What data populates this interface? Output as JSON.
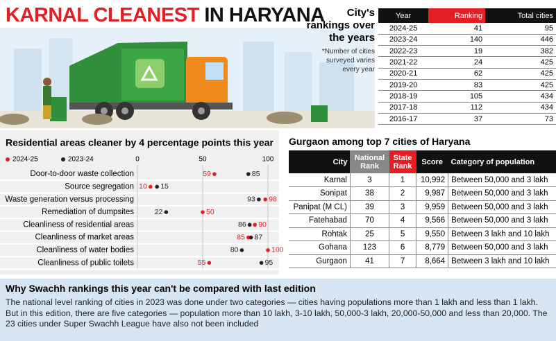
{
  "header": {
    "title_red": "KARNAL CLEANEST",
    "title_black": "IN HARYANA"
  },
  "rankings": {
    "title": "City's rankings over the years",
    "note": "*Number of cities surveyed varies every year",
    "columns": [
      "Year",
      "Ranking",
      "Total cities"
    ],
    "rows": [
      [
        "2024-25",
        41,
        95
      ],
      [
        "2023-24",
        140,
        446
      ],
      [
        "2022-23",
        19,
        382
      ],
      [
        "2021-22",
        24,
        425
      ],
      [
        "2020-21",
        62,
        425
      ],
      [
        "2019-20",
        83,
        425
      ],
      [
        "2018-19",
        105,
        434
      ],
      [
        "2017-18",
        112,
        434
      ],
      [
        "2016-17",
        37,
        73
      ]
    ]
  },
  "chart_data": {
    "type": "dot",
    "title": "Residential areas cleaner by 4 percentage points this year",
    "categories": [
      "Door-to-door waste collection",
      "Source segregation",
      "Waste generation versus processing",
      "Remediation of dumpsites",
      "Cleanliness of residential areas",
      "Cleanliness of market areas",
      "Cleanliness of water bodies",
      "Cleanliness of public toilets"
    ],
    "series": [
      {
        "name": "2024-25",
        "color": "#e31e24",
        "values": [
          59,
          10,
          98,
          50,
          90,
          85,
          100,
          55
        ]
      },
      {
        "name": "2023-24",
        "color": "#222222",
        "values": [
          85,
          15,
          93,
          22,
          86,
          87,
          80,
          95
        ]
      }
    ],
    "xlim": [
      0,
      100
    ],
    "xticks": [
      0,
      50,
      100
    ]
  },
  "gurgaon": {
    "title": "Gurgaon among top 7 cities of Haryana",
    "columns": [
      "City",
      "National Rank",
      "State Rank",
      "Score",
      "Category of population"
    ],
    "rows": [
      [
        "Karnal",
        3,
        1,
        "10,992",
        "Between 50,000 and 3 lakh"
      ],
      [
        "Sonipat",
        38,
        2,
        "9,987",
        "Between 50,000 and 3 lakh"
      ],
      [
        "Panipat (M CL)",
        39,
        3,
        "9,959",
        "Between 50,000 and 3 lakh"
      ],
      [
        "Fatehabad",
        70,
        4,
        "9,566",
        "Between 50,000 and 3 lakh"
      ],
      [
        "Rohtak",
        25,
        5,
        "9,550",
        "Between 3 lakh and 10 lakh"
      ],
      [
        "Gohana",
        123,
        6,
        "8,779",
        "Between 50,000 and 3 lakh"
      ],
      [
        "Gurgaon",
        41,
        7,
        "8,664",
        "Between 3 lakh and 10 lakh"
      ]
    ]
  },
  "note": {
    "title": "Why Swachh rankings this year can't be compared with last edition",
    "body": "The national level ranking of cities in 2023 was done under two categories — cities having populations more than 1 lakh and less than 1 lakh. But in this edition, there are five categories — population more than 10 lakh, 3-10 lakh, 50,000-3 lakh, 20,000-50,000 and less than 20,000. The 23 cities under Super Swachh League have also not been included"
  }
}
